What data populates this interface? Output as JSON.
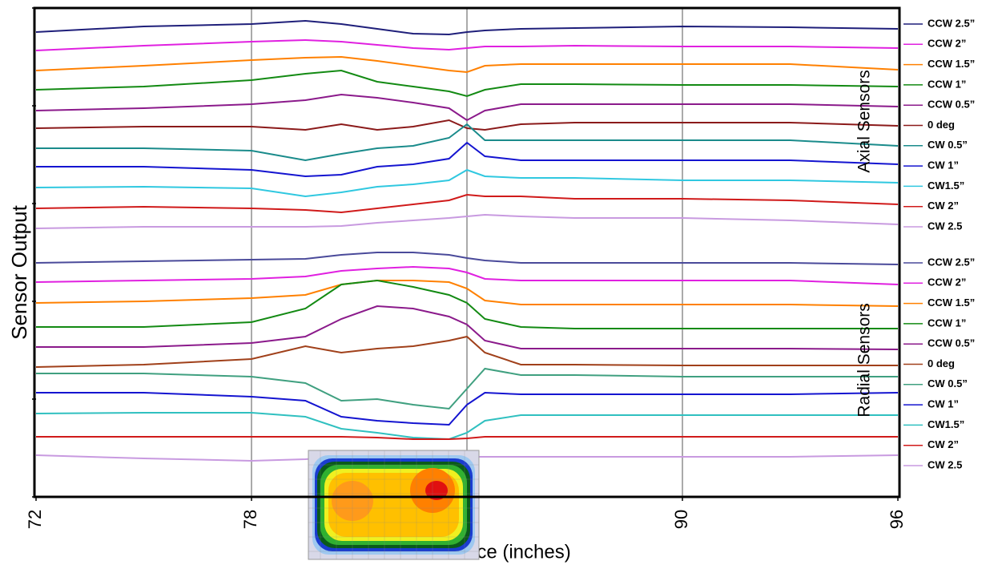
{
  "chart_data": {
    "type": "line",
    "x_title": "Distance (inches)",
    "y_title": "Sensor Output",
    "x": [
      72,
      75,
      78,
      79.5,
      80.5,
      81.5,
      82.5,
      83.5,
      84,
      84.5,
      85.5,
      87,
      90,
      93,
      96
    ],
    "xlim": [
      72,
      96
    ],
    "xticks": [
      72,
      78,
      90,
      96
    ],
    "xgrid": [
      78,
      84,
      90
    ],
    "ylim": [
      0,
      61
    ],
    "yticks": [
      0,
      12.2,
      24.4,
      36.6,
      48.8,
      61
    ],
    "legend_groups": [
      "Axial Sensors",
      "Radial Sensors"
    ],
    "series": [
      {
        "name": "CCW 2.5”",
        "group": 0,
        "color": "#1f1f7a",
        "values": [
          58,
          58.7,
          59,
          59.4,
          59,
          58.4,
          57.8,
          57.7,
          58,
          58.2,
          58.4,
          58.5,
          58.7,
          58.6,
          58.4
        ]
      },
      {
        "name": "CCW 2”",
        "group": 0,
        "color": "#e020e0",
        "values": [
          55.7,
          56.3,
          56.8,
          57,
          56.8,
          56.4,
          56,
          55.8,
          56,
          56.2,
          56.2,
          56.3,
          56.2,
          56.2,
          56
        ]
      },
      {
        "name": "CCW 1.5”",
        "group": 0,
        "color": "#ff8000",
        "values": [
          53.2,
          53.8,
          54.5,
          54.8,
          54.9,
          54.4,
          53.8,
          53.2,
          53,
          53.8,
          54,
          54,
          54,
          54,
          53.3
        ]
      },
      {
        "name": "CCW 1”",
        "group": 0,
        "color": "#138a13",
        "values": [
          50.8,
          51.2,
          52,
          52.8,
          53.2,
          51.8,
          51.2,
          50.6,
          50,
          50.8,
          51.5,
          51.5,
          51.4,
          51.4,
          51.2
        ]
      },
      {
        "name": "CCW 0.5”",
        "group": 0,
        "color": "#8b1a8b",
        "values": [
          48.2,
          48.5,
          49,
          49.5,
          50.2,
          49.8,
          49.2,
          48.5,
          47,
          48.2,
          49,
          49,
          49,
          49,
          48.7
        ]
      },
      {
        "name": "0 deg",
        "group": 0,
        "color": "#8b1a1a",
        "values": [
          46,
          46.2,
          46.2,
          45.8,
          46.5,
          45.8,
          46.2,
          47,
          46,
          45.8,
          46.5,
          46.7,
          46.7,
          46.7,
          46.3
        ]
      },
      {
        "name": "CW 0.5”",
        "group": 0,
        "color": "#1a8b8b",
        "values": [
          43.5,
          43.5,
          43.2,
          42,
          42.8,
          43.5,
          43.8,
          44.8,
          46.5,
          44.5,
          44.5,
          44.5,
          44.5,
          44.5,
          43.8
        ]
      },
      {
        "name": "CW 1”",
        "group": 0,
        "color": "#1414d0",
        "values": [
          41.2,
          41.2,
          40.8,
          40,
          40.2,
          41.2,
          41.5,
          42.2,
          44.2,
          42.5,
          42,
          42,
          42,
          42,
          41.5
        ]
      },
      {
        "name": "CW1.5”",
        "group": 0,
        "color": "#30c8e0",
        "values": [
          38.6,
          38.7,
          38.5,
          37.5,
          38,
          38.7,
          39,
          39.5,
          40.8,
          40,
          39.8,
          39.8,
          39.5,
          39.5,
          39.2
        ]
      },
      {
        "name": "CW 2”",
        "group": 0,
        "color": "#d01a1a",
        "values": [
          36,
          36.2,
          36,
          35.8,
          35.5,
          36,
          36.5,
          37,
          37.7,
          37.5,
          37.5,
          37.2,
          37.2,
          37,
          36.5
        ]
      },
      {
        "name": "CW 2.5",
        "group": 0,
        "color": "#c89ae0",
        "values": [
          33.5,
          33.7,
          33.7,
          33.7,
          33.8,
          34.2,
          34.5,
          34.8,
          35,
          35.2,
          35,
          34.8,
          34.8,
          34.5,
          34
        ]
      },
      {
        "name": "CCW 2.5”",
        "group": 1,
        "color": "#4a4a9a",
        "values": [
          29.2,
          29.4,
          29.6,
          29.7,
          30.2,
          30.5,
          30.5,
          30.2,
          29.8,
          29.5,
          29.2,
          29.2,
          29.2,
          29.2,
          29
        ]
      },
      {
        "name": "CCW 2”",
        "group": 1,
        "color": "#e020e0",
        "values": [
          26.8,
          27,
          27.2,
          27.5,
          28.2,
          28.5,
          28.7,
          28.5,
          28,
          27.2,
          27,
          27,
          27,
          27,
          26.5
        ]
      },
      {
        "name": "CCW 1.5”",
        "group": 1,
        "color": "#ff8000",
        "values": [
          24.2,
          24.4,
          24.8,
          25.2,
          26.5,
          27,
          27,
          26.8,
          26,
          24.5,
          24,
          24,
          24,
          24,
          23.8
        ]
      },
      {
        "name": "CCW 1”",
        "group": 1,
        "color": "#138a13",
        "values": [
          21.2,
          21.2,
          21.8,
          23.5,
          26.5,
          27,
          26.2,
          25.2,
          24.2,
          22.2,
          21.2,
          21,
          21,
          21,
          21
        ]
      },
      {
        "name": "CCW 0.5”",
        "group": 1,
        "color": "#8b1a8b",
        "values": [
          18.7,
          18.7,
          19.2,
          20,
          22.2,
          23.8,
          23.5,
          22.5,
          21.5,
          19.5,
          18.5,
          18.5,
          18.5,
          18.5,
          18.4
        ]
      },
      {
        "name": "0 deg",
        "group": 1,
        "color": "#a0401a",
        "values": [
          16.2,
          16.5,
          17.2,
          18.8,
          18,
          18.5,
          18.8,
          19.5,
          20,
          18,
          16.5,
          16.5,
          16.4,
          16.4,
          16.4
        ]
      },
      {
        "name": "CW 0.5”",
        "group": 1,
        "color": "#40a080",
        "values": [
          15.4,
          15.4,
          15,
          14.2,
          12,
          12.2,
          11.5,
          11,
          13.5,
          16,
          15.2,
          15.2,
          15,
          15,
          15
        ]
      },
      {
        "name": "CW 1”",
        "group": 1,
        "color": "#1414d0",
        "values": [
          13,
          13,
          12.5,
          12,
          10,
          9.5,
          9.2,
          9,
          11.5,
          13,
          12.8,
          12.8,
          12.8,
          12.8,
          13
        ]
      },
      {
        "name": "CW1.5”",
        "group": 1,
        "color": "#30c0c0",
        "values": [
          10.4,
          10.5,
          10.5,
          10,
          8.5,
          8,
          7.4,
          7.2,
          8,
          9.5,
          10.2,
          10.2,
          10.2,
          10.2,
          10.2
        ]
      },
      {
        "name": "CW 2”",
        "group": 1,
        "color": "#d01a1a",
        "values": [
          7.5,
          7.5,
          7.5,
          7.5,
          7.5,
          7.4,
          7.2,
          7.2,
          7.3,
          7.5,
          7.5,
          7.5,
          7.5,
          7.5,
          7.5
        ]
      },
      {
        "name": "CW 2.5",
        "group": 1,
        "color": "#c89ae0",
        "values": [
          5.2,
          4.8,
          4.5,
          4.7,
          5,
          5,
          5,
          5,
          5,
          5,
          5,
          5,
          5,
          5,
          5.2
        ]
      }
    ]
  }
}
